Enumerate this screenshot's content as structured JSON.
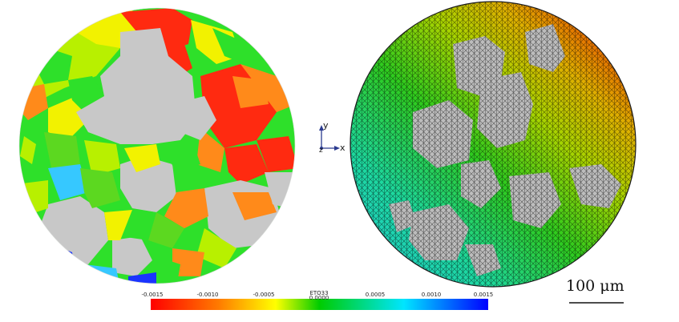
{
  "colorbar": {
    "title": "ETO33",
    "ticks": [
      "-0.0015",
      "-0.0010",
      "-0.0005",
      "0.0000",
      "0.0005",
      "0.0010",
      "0.0015"
    ],
    "colors": [
      "#ff0000",
      "#ff7a00",
      "#ffff00",
      "#00cc00",
      "#00e5ff",
      "#0000ff"
    ]
  },
  "axes": {
    "y": "y",
    "z": "z",
    "x": "x"
  },
  "scale_bar": {
    "label": "100 μm"
  },
  "grain_colors": {
    "red": "#ff2a10",
    "orange": "#ff8a1a",
    "yellow": "#f2f200",
    "yellow_green": "#b8f000",
    "green": "#2ee02a",
    "green2": "#5cd820",
    "cyan": "#36c8ff",
    "blue": "#1a34ff",
    "gray": "#c8c8c8"
  }
}
